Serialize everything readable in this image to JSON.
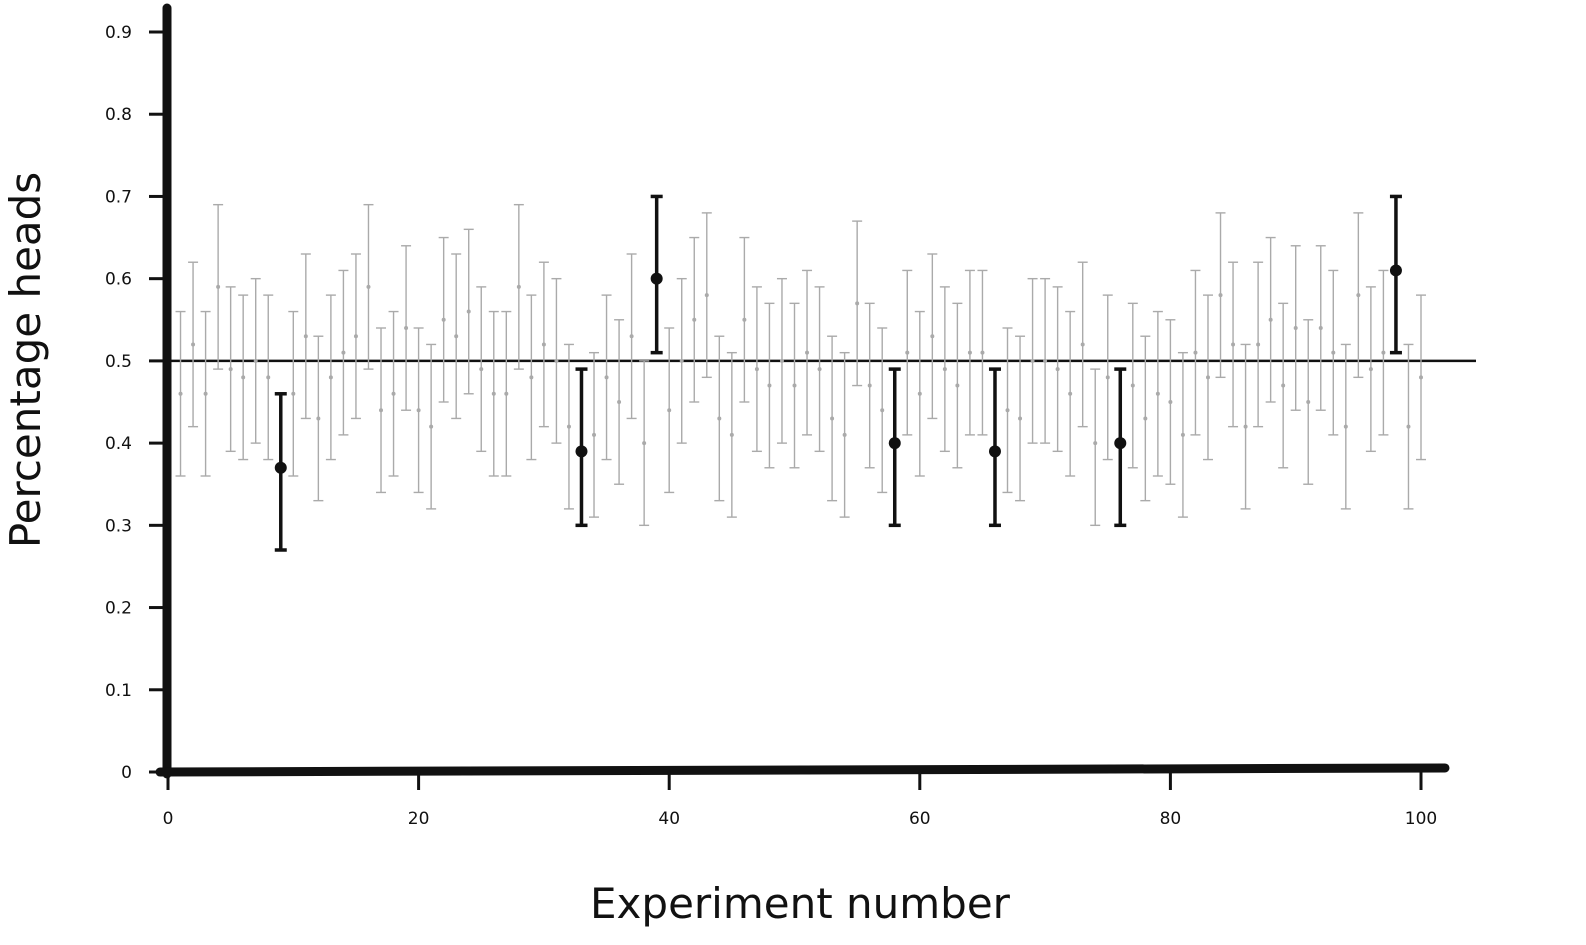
{
  "chart_data": {
    "type": "scatter",
    "title": "",
    "xlabel": "Experiment number",
    "ylabel": "Percentage heads",
    "xlim": [
      0,
      102
    ],
    "ylim": [
      0,
      0.9
    ],
    "x_ticks": [
      "0",
      "20",
      "40",
      "60",
      "80",
      "100"
    ],
    "y_ticks": [
      "0",
      "0.1",
      "0.2",
      "0.3",
      "0.4",
      "0.5",
      "0.6",
      "0.7",
      "0.8",
      "0.9"
    ],
    "reference_line": 0.5,
    "grid": false,
    "legend": "none",
    "colors": {
      "axis": "#111111",
      "highlight": "#111111",
      "normal": "#aaaaaa"
    },
    "series": [
      {
        "x": [
          1,
          2,
          3,
          4,
          5,
          6,
          7,
          8,
          9,
          10,
          11,
          12,
          13,
          14,
          15,
          16,
          17,
          18,
          19,
          20,
          21,
          22,
          23,
          24,
          25,
          26,
          27,
          28,
          29,
          30,
          31,
          32,
          33,
          34,
          35,
          36,
          37,
          38,
          39,
          40,
          41,
          42,
          43,
          44,
          45,
          46,
          47,
          48,
          49,
          50,
          51,
          52,
          53,
          54,
          55,
          56,
          57,
          58,
          59,
          60,
          61,
          62,
          63,
          64,
          65,
          66,
          67,
          68,
          69,
          70,
          71,
          72,
          73,
          74,
          75,
          76,
          77,
          78,
          79,
          80,
          81,
          82,
          83,
          84,
          85,
          86,
          87,
          88,
          89,
          90,
          91,
          92,
          93,
          94,
          95,
          96,
          97,
          98,
          99,
          100
        ],
        "y": [
          0.46,
          0.52,
          0.46,
          0.59,
          0.49,
          0.48,
          0.5,
          0.48,
          0.37,
          0.46,
          0.53,
          0.43,
          0.48,
          0.51,
          0.53,
          0.59,
          0.44,
          0.46,
          0.54,
          0.44,
          0.42,
          0.55,
          0.53,
          0.56,
          0.49,
          0.46,
          0.46,
          0.59,
          0.48,
          0.52,
          0.5,
          0.42,
          0.39,
          0.41,
          0.48,
          0.45,
          0.53,
          0.4,
          0.6,
          0.44,
          0.5,
          0.55,
          0.58,
          0.43,
          0.41,
          0.55,
          0.49,
          0.47,
          0.5,
          0.47,
          0.51,
          0.49,
          0.43,
          0.41,
          0.57,
          0.47,
          0.44,
          0.4,
          0.51,
          0.46,
          0.53,
          0.49,
          0.47,
          0.51,
          0.51,
          0.39,
          0.44,
          0.43,
          0.5,
          0.5,
          0.49,
          0.46,
          0.52,
          0.4,
          0.48,
          0.4,
          0.47,
          0.43,
          0.46,
          0.45,
          0.41,
          0.51,
          0.48,
          0.58,
          0.52,
          0.42,
          0.52,
          0.55,
          0.47,
          0.54,
          0.45,
          0.54,
          0.51,
          0.42,
          0.58,
          0.49,
          0.51,
          0.61,
          0.42,
          0.48
        ],
        "lower": [
          0.36,
          0.42,
          0.36,
          0.49,
          0.39,
          0.38,
          0.4,
          0.38,
          0.27,
          0.36,
          0.43,
          0.33,
          0.38,
          0.41,
          0.43,
          0.49,
          0.34,
          0.36,
          0.44,
          0.34,
          0.32,
          0.45,
          0.43,
          0.46,
          0.39,
          0.36,
          0.36,
          0.49,
          0.38,
          0.42,
          0.4,
          0.32,
          0.3,
          0.31,
          0.38,
          0.35,
          0.43,
          0.3,
          0.51,
          0.34,
          0.4,
          0.45,
          0.48,
          0.33,
          0.31,
          0.45,
          0.39,
          0.37,
          0.4,
          0.37,
          0.41,
          0.39,
          0.33,
          0.31,
          0.47,
          0.37,
          0.34,
          0.3,
          0.41,
          0.36,
          0.43,
          0.39,
          0.37,
          0.41,
          0.41,
          0.3,
          0.34,
          0.33,
          0.4,
          0.4,
          0.39,
          0.36,
          0.42,
          0.3,
          0.38,
          0.3,
          0.37,
          0.33,
          0.36,
          0.35,
          0.31,
          0.41,
          0.38,
          0.48,
          0.42,
          0.32,
          0.42,
          0.45,
          0.37,
          0.44,
          0.35,
          0.44,
          0.41,
          0.32,
          0.48,
          0.39,
          0.41,
          0.51,
          0.32,
          0.38
        ],
        "upper": [
          0.56,
          0.62,
          0.56,
          0.69,
          0.59,
          0.58,
          0.6,
          0.58,
          0.46,
          0.56,
          0.63,
          0.53,
          0.58,
          0.61,
          0.63,
          0.69,
          0.54,
          0.56,
          0.64,
          0.54,
          0.52,
          0.65,
          0.63,
          0.66,
          0.59,
          0.56,
          0.56,
          0.69,
          0.58,
          0.62,
          0.6,
          0.52,
          0.49,
          0.51,
          0.58,
          0.55,
          0.63,
          0.5,
          0.7,
          0.54,
          0.6,
          0.65,
          0.68,
          0.53,
          0.51,
          0.65,
          0.59,
          0.57,
          0.6,
          0.57,
          0.61,
          0.59,
          0.53,
          0.51,
          0.67,
          0.57,
          0.54,
          0.49,
          0.61,
          0.56,
          0.63,
          0.59,
          0.57,
          0.61,
          0.61,
          0.49,
          0.54,
          0.53,
          0.6,
          0.6,
          0.59,
          0.56,
          0.62,
          0.49,
          0.58,
          0.49,
          0.57,
          0.53,
          0.56,
          0.55,
          0.51,
          0.61,
          0.58,
          0.68,
          0.62,
          0.52,
          0.62,
          0.65,
          0.57,
          0.64,
          0.55,
          0.64,
          0.61,
          0.52,
          0.68,
          0.59,
          0.61,
          0.7,
          0.52,
          0.58
        ],
        "highlighted": [
          9,
          33,
          39,
          58,
          66,
          76,
          98
        ]
      }
    ]
  }
}
